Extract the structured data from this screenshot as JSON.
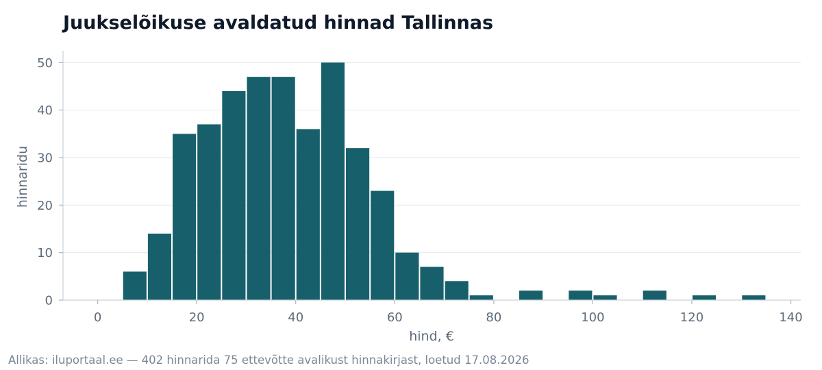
{
  "chart_data": {
    "type": "bar",
    "title": "Juukselõikuse avaldatud hinnad Tallinnas",
    "xlabel": "hind, €",
    "ylabel": "hinnaridu",
    "bin_width": 5,
    "bins": [
      {
        "start": 5,
        "count": 6
      },
      {
        "start": 10,
        "count": 14
      },
      {
        "start": 15,
        "count": 35
      },
      {
        "start": 20,
        "count": 37
      },
      {
        "start": 25,
        "count": 44
      },
      {
        "start": 30,
        "count": 47
      },
      {
        "start": 35,
        "count": 47
      },
      {
        "start": 40,
        "count": 36
      },
      {
        "start": 45,
        "count": 50
      },
      {
        "start": 50,
        "count": 32
      },
      {
        "start": 55,
        "count": 23
      },
      {
        "start": 60,
        "count": 10
      },
      {
        "start": 65,
        "count": 7
      },
      {
        "start": 70,
        "count": 4
      },
      {
        "start": 75,
        "count": 1
      },
      {
        "start": 85,
        "count": 2
      },
      {
        "start": 95,
        "count": 2
      },
      {
        "start": 100,
        "count": 1
      },
      {
        "start": 110,
        "count": 2
      },
      {
        "start": 120,
        "count": 1
      },
      {
        "start": 130,
        "count": 1
      }
    ],
    "xlim": [
      -7,
      142
    ],
    "ylim": [
      0,
      52.5
    ],
    "xticks": [
      0,
      20,
      40,
      60,
      80,
      100,
      120,
      140
    ],
    "yticks": [
      0,
      10,
      20,
      30,
      40,
      50
    ],
    "grid": "horizontal",
    "bar_color": "#17606b"
  },
  "source_note": "Allikas: iluportaal.ee — 402 hinnarida 75 ettevõtte avalikust hinnakirjast, loetud 17.08.2026"
}
